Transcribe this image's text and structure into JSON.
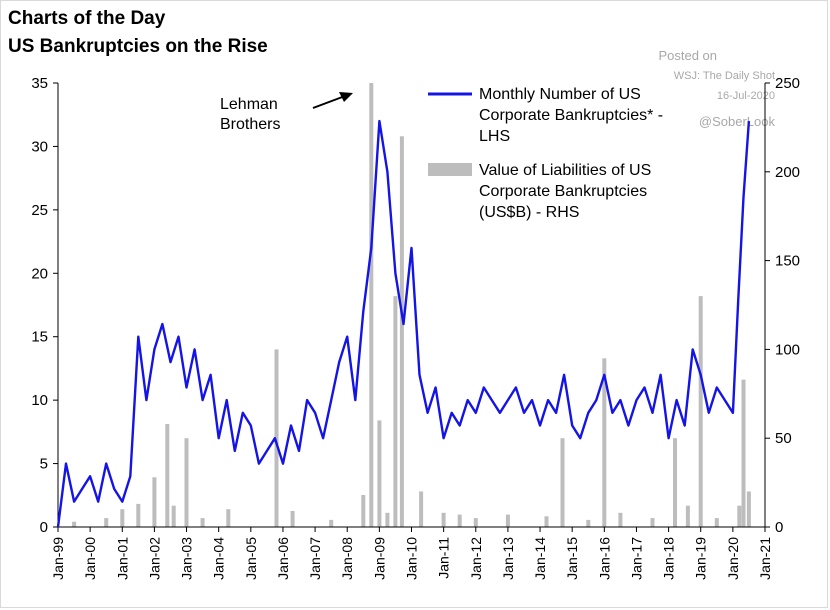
{
  "header": {
    "title": "Charts of the Day",
    "subtitle": "US Bankruptcies on the Rise"
  },
  "watermark": {
    "posted_on": "Posted on",
    "source": "WSJ: The Daily Shot",
    "date": "16-Jul-2020",
    "handle": "@SoberLook"
  },
  "chart_data": {
    "type": "line",
    "title": "US Bankruptcies on the Rise",
    "annotation": {
      "text": [
        "Lehman",
        "Brothers"
      ]
    },
    "x_tick_labels": [
      "Jan-99",
      "Jan-00",
      "Jan-01",
      "Jan-02",
      "Jan-03",
      "Jan-04",
      "Jan-05",
      "Jan-06",
      "Jan-07",
      "Jan-08",
      "Jan-09",
      "Jan-10",
      "Jan-11",
      "Jan-12",
      "Jan-13",
      "Jan-14",
      "Jan-15",
      "Jan-16",
      "Jan-17",
      "Jan-18",
      "Jan-19",
      "Jan-20",
      "Jan-21"
    ],
    "x_range": [
      1999.0,
      2021.0
    ],
    "y_left": {
      "range": [
        0,
        35
      ],
      "ticks": [
        0,
        5,
        10,
        15,
        20,
        25,
        30,
        35
      ]
    },
    "y_right": {
      "range": [
        0,
        250
      ],
      "ticks": [
        0,
        50,
        100,
        150,
        200,
        250
      ]
    },
    "legend_position": "top-right",
    "colors": {
      "line": "#1414e6",
      "bars": "#bdbdbd",
      "axis": "#000000"
    },
    "series": [
      {
        "name": "Monthly Number of US Corporate Bankruptcies* - LHS",
        "label_lines": [
          "Monthly Number of US",
          "Corporate Bankruptcies* -",
          "LHS"
        ],
        "type": "line",
        "axis": "left",
        "x": [
          1999.0,
          1999.25,
          1999.5,
          1999.75,
          2000.0,
          2000.25,
          2000.5,
          2000.75,
          2001.0,
          2001.25,
          2001.5,
          2001.75,
          2002.0,
          2002.25,
          2002.5,
          2002.75,
          2003.0,
          2003.25,
          2003.5,
          2003.75,
          2004.0,
          2004.25,
          2004.5,
          2004.75,
          2005.0,
          2005.25,
          2005.5,
          2005.75,
          2006.0,
          2006.25,
          2006.5,
          2006.75,
          2007.0,
          2007.25,
          2007.5,
          2007.75,
          2008.0,
          2008.25,
          2008.5,
          2008.75,
          2009.0,
          2009.25,
          2009.5,
          2009.75,
          2010.0,
          2010.25,
          2010.5,
          2010.75,
          2011.0,
          2011.25,
          2011.5,
          2011.75,
          2012.0,
          2012.25,
          2012.5,
          2012.75,
          2013.0,
          2013.25,
          2013.5,
          2013.75,
          2014.0,
          2014.25,
          2014.5,
          2014.75,
          2015.0,
          2015.25,
          2015.5,
          2015.75,
          2016.0,
          2016.25,
          2016.5,
          2016.75,
          2017.0,
          2017.25,
          2017.5,
          2017.75,
          2018.0,
          2018.25,
          2018.5,
          2018.75,
          2019.0,
          2019.25,
          2019.5,
          2019.75,
          2020.0,
          2020.17,
          2020.33,
          2020.5
        ],
        "values": [
          0,
          5,
          2,
          3,
          4,
          2,
          5,
          3,
          2,
          4,
          15,
          10,
          14,
          16,
          13,
          15,
          11,
          14,
          10,
          12,
          7,
          10,
          6,
          9,
          8,
          5,
          6,
          7,
          5,
          8,
          6,
          10,
          9,
          7,
          10,
          13,
          15,
          10,
          17,
          22,
          32,
          28,
          20,
          16,
          22,
          12,
          9,
          11,
          7,
          9,
          8,
          10,
          9,
          11,
          10,
          9,
          10,
          11,
          9,
          10,
          8,
          10,
          9,
          12,
          8,
          7,
          9,
          10,
          12,
          9,
          10,
          8,
          10,
          11,
          9,
          12,
          7,
          10,
          8,
          14,
          12,
          9,
          11,
          10,
          9,
          18,
          26,
          32
        ],
        "unit": "count"
      },
      {
        "name": "Value of Liabilities of US Corporate Bankruptcies (US$B) - RHS",
        "label_lines": [
          "Value of Liabilities of US",
          "Corporate Bankruptcies",
          "(US$B) - RHS"
        ],
        "type": "bar",
        "axis": "right",
        "x": [
          1999.5,
          2000.5,
          2001.0,
          2001.5,
          2002.0,
          2002.4,
          2002.6,
          2003.0,
          2003.5,
          2004.3,
          2005.8,
          2006.3,
          2007.5,
          2008.5,
          2008.75,
          2009.0,
          2009.25,
          2009.5,
          2009.7,
          2010.3,
          2011.0,
          2011.5,
          2012.0,
          2013.0,
          2014.2,
          2014.7,
          2015.5,
          2016.0,
          2016.5,
          2017.5,
          2018.2,
          2018.6,
          2019.0,
          2019.5,
          2020.2,
          2020.33,
          2020.5
        ],
        "values": [
          3,
          5,
          10,
          13,
          28,
          58,
          12,
          50,
          5,
          10,
          100,
          9,
          4,
          18,
          250,
          60,
          8,
          130,
          220,
          20,
          8,
          7,
          5,
          7,
          6,
          50,
          4,
          95,
          8,
          5,
          50,
          12,
          130,
          5,
          12,
          83,
          20
        ],
        "unit": "US$B"
      }
    ]
  }
}
